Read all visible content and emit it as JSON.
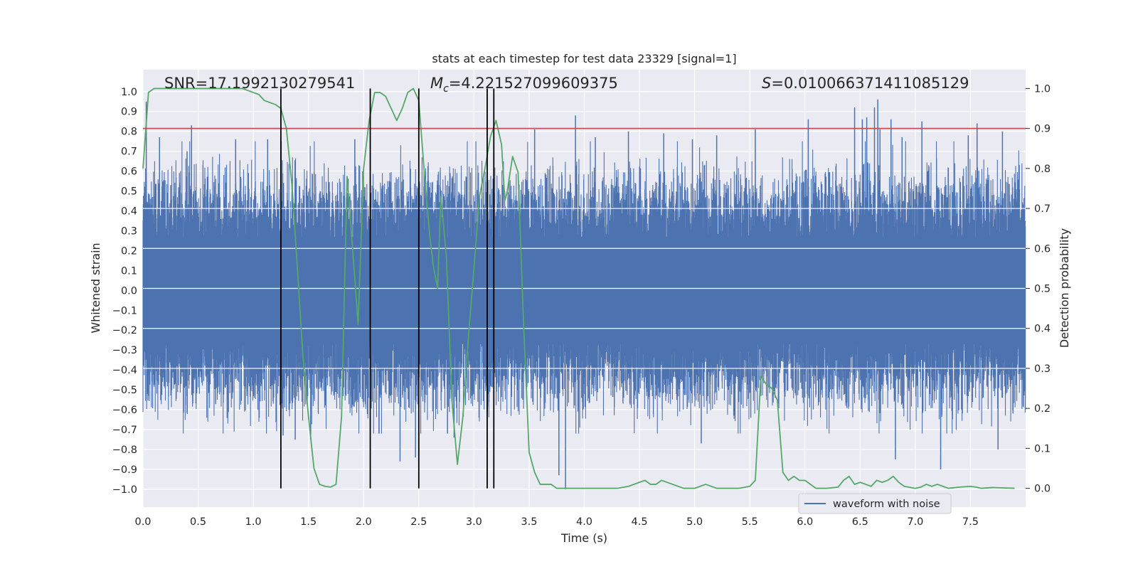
{
  "chart_data": {
    "type": "line",
    "title": "stats at each timestep for test data 23329 [signal=1]",
    "xlabel": "Time (s)",
    "ylabel": "Whitened strain",
    "y2label": "Detection probability",
    "xlim": [
      0.0,
      8.0
    ],
    "ylim": [
      -1.09,
      1.11
    ],
    "y2lim": [
      -0.047,
      1.047
    ],
    "xticks": [
      "0.0",
      "0.5",
      "1.0",
      "1.5",
      "2.0",
      "2.5",
      "3.0",
      "3.5",
      "4.0",
      "4.5",
      "5.0",
      "5.5",
      "6.0",
      "6.5",
      "7.0",
      "7.5"
    ],
    "yticks": [
      "1.0",
      "0.9",
      "0.8",
      "0.7",
      "0.6",
      "0.5",
      "0.4",
      "0.3",
      "0.2",
      "0.1",
      "0.0",
      "−0.1",
      "−0.2",
      "−0.3",
      "−0.4",
      "−0.5",
      "−0.6",
      "−0.7",
      "−0.8",
      "−0.9",
      "−1.0"
    ],
    "y2ticks": [
      "1.0",
      "0.9",
      "0.8",
      "0.7",
      "0.6",
      "0.5",
      "0.4",
      "0.3",
      "0.2",
      "0.1",
      "0.0"
    ],
    "annotations": {
      "snr": "SNR=17.1992130279541",
      "mc_symbol": "M",
      "mc_subscript": "c",
      "mc_value": "=4.221527099609375",
      "s_symbol": "S",
      "s_value": "=0.010066371411085129"
    },
    "threshold": 0.9,
    "event_lines_s": [
      1.25,
      2.06,
      2.5,
      3.12,
      3.18
    ],
    "series": [
      {
        "name": "waveform with noise",
        "axis": "left",
        "color": "#4c72b0",
        "style": "noise",
        "sample_count": 4096,
        "baseline_abs": 0.36,
        "spikes": [
          [
            0.03,
            0.95
          ],
          [
            0.44,
            0.83
          ],
          [
            0.4,
            0.7
          ],
          [
            0.15,
            0.77
          ],
          [
            0.84,
            0.76
          ],
          [
            1.13,
            0.76
          ],
          [
            1.27,
            -0.73
          ],
          [
            1.38,
            -0.75
          ],
          [
            1.52,
            -0.75
          ],
          [
            1.92,
            0.76
          ],
          [
            2.14,
            -0.72
          ],
          [
            2.33,
            -0.86
          ],
          [
            2.47,
            -0.84
          ],
          [
            2.76,
            -0.72
          ],
          [
            2.82,
            -0.74
          ],
          [
            3.77,
            -0.93
          ],
          [
            3.83,
            -1.0
          ],
          [
            3.92,
            0.88
          ],
          [
            4.1,
            0.77
          ],
          [
            4.4,
            0.8
          ],
          [
            4.72,
            0.79
          ],
          [
            4.98,
            0.76
          ],
          [
            5.06,
            -0.77
          ],
          [
            5.55,
            0.81
          ],
          [
            6.03,
            0.86
          ],
          [
            6.45,
            0.92
          ],
          [
            6.52,
            0.86
          ],
          [
            6.56,
            0.87
          ],
          [
            6.63,
            0.92
          ],
          [
            6.66,
            0.96
          ],
          [
            6.68,
            0.81
          ],
          [
            6.78,
            0.86
          ],
          [
            6.82,
            -0.85
          ],
          [
            6.88,
            0.77
          ],
          [
            7.23,
            -0.9
          ],
          [
            7.48,
            0.78
          ],
          [
            7.56,
            0.84
          ],
          [
            7.75,
            -0.8
          ],
          [
            7.79,
            0.8
          ],
          [
            7.06,
            0.85
          ],
          [
            3.55,
            0.81
          ],
          [
            5.2,
            0.78
          ]
        ]
      },
      {
        "name": "Detection probability",
        "axis": "right",
        "color": "#55a868",
        "x": [
          0.0,
          0.05,
          0.1,
          0.15,
          0.2,
          0.3,
          0.4,
          0.5,
          0.6,
          0.7,
          0.8,
          0.9,
          1.0,
          1.05,
          1.1,
          1.2,
          1.25,
          1.3,
          1.35,
          1.4,
          1.45,
          1.5,
          1.55,
          1.6,
          1.65,
          1.7,
          1.75,
          1.8,
          1.85,
          1.9,
          1.95,
          2.0,
          2.05,
          2.1,
          2.15,
          2.2,
          2.25,
          2.3,
          2.35,
          2.4,
          2.45,
          2.5,
          2.55,
          2.6,
          2.63,
          2.67,
          2.7,
          2.75,
          2.8,
          2.85,
          2.9,
          2.95,
          3.0,
          3.05,
          3.1,
          3.15,
          3.2,
          3.25,
          3.28,
          3.3,
          3.35,
          3.4,
          3.45,
          3.5,
          3.55,
          3.6,
          3.65,
          3.7,
          3.75,
          3.8,
          4.0,
          4.2,
          4.3,
          4.4,
          4.5,
          4.55,
          4.6,
          4.65,
          4.7,
          4.8,
          4.9,
          5.0,
          5.05,
          5.1,
          5.2,
          5.3,
          5.4,
          5.5,
          5.55,
          5.6,
          5.65,
          5.7,
          5.75,
          5.8,
          5.85,
          5.9,
          5.95,
          6.0,
          6.1,
          6.2,
          6.3,
          6.35,
          6.4,
          6.45,
          6.5,
          6.55,
          6.6,
          6.65,
          6.7,
          6.75,
          6.8,
          6.85,
          6.9,
          7.0,
          7.05,
          7.1,
          7.15,
          7.2,
          7.25,
          7.3,
          7.4,
          7.5,
          7.55,
          7.6,
          7.7,
          7.8,
          7.9
        ],
        "y": [
          0.8,
          0.99,
          1.0,
          1.0,
          1.0,
          1.0,
          1.0,
          1.0,
          1.0,
          1.0,
          1.0,
          1.0,
          0.99,
          0.985,
          0.97,
          0.96,
          0.95,
          0.9,
          0.76,
          0.55,
          0.33,
          0.18,
          0.05,
          0.01,
          0.005,
          0.003,
          0.01,
          0.18,
          0.78,
          0.6,
          0.41,
          0.8,
          0.92,
          0.99,
          0.99,
          0.98,
          0.95,
          0.92,
          0.95,
          0.99,
          1.0,
          0.97,
          0.79,
          0.63,
          0.56,
          0.5,
          0.73,
          0.58,
          0.22,
          0.06,
          0.18,
          0.38,
          0.55,
          0.73,
          0.8,
          0.88,
          0.92,
          0.86,
          0.72,
          0.74,
          0.83,
          0.79,
          0.41,
          0.09,
          0.04,
          0.01,
          0.01,
          0.01,
          0.0,
          0.0,
          0.0,
          0.0,
          0.0,
          0.005,
          0.015,
          0.02,
          0.01,
          0.01,
          0.02,
          0.01,
          0.0,
          0.0,
          0.005,
          0.01,
          0.0,
          0.0,
          0.0,
          0.005,
          0.02,
          0.28,
          0.26,
          0.25,
          0.22,
          0.04,
          0.02,
          0.03,
          0.02,
          0.02,
          0.0,
          0.0,
          0.003,
          0.02,
          0.03,
          0.01,
          0.015,
          0.01,
          0.005,
          0.02,
          0.015,
          0.02,
          0.03,
          0.015,
          0.005,
          0.0,
          0.003,
          0.01,
          0.005,
          0.01,
          0.005,
          0.0,
          0.003,
          0.005,
          0.003,
          0.0,
          0.002,
          0.001,
          0.0
        ]
      },
      {
        "name": "Threshold",
        "axis": "right",
        "color": "#c44e52",
        "x": [
          0.0,
          8.0
        ],
        "y": [
          0.9,
          0.9
        ]
      }
    ],
    "legend": {
      "label": "waveform with noise",
      "placement": "lower-center-right"
    }
  }
}
